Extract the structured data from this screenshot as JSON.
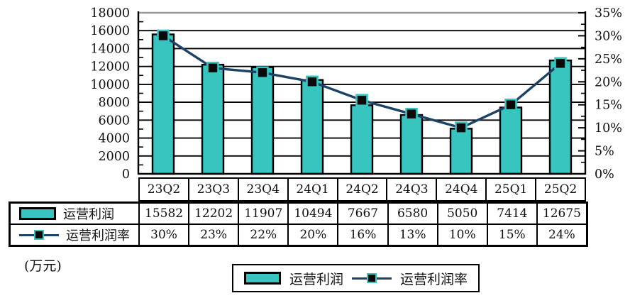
{
  "unit_label": "(万元)",
  "chart_data": {
    "type": "combo-bar-line",
    "title": "",
    "categories": [
      "23Q2",
      "23Q3",
      "23Q4",
      "24Q1",
      "24Q2",
      "24Q3",
      "24Q4",
      "25Q1",
      "25Q2"
    ],
    "series": [
      {
        "name": "运营利润",
        "type": "bar",
        "axis": "left",
        "unit": "万元",
        "color": "#38c5c0",
        "values": [
          15582,
          12202,
          11907,
          10494,
          7667,
          6580,
          5050,
          7414,
          12675
        ]
      },
      {
        "name": "运营利润率",
        "type": "line",
        "axis": "right",
        "value_suffix": "%",
        "color": "#1c4265",
        "marker_color": "#0a0a0a",
        "values": [
          30,
          23,
          22,
          20,
          16,
          13,
          10,
          15,
          24
        ]
      }
    ],
    "left_axis": {
      "min": 0,
      "max": 18000,
      "step": 2000,
      "tick_labels": [
        "18000",
        "16000",
        "14000",
        "12000",
        "10000",
        "8000",
        "6000",
        "4000",
        "2000",
        "0"
      ]
    },
    "right_axis": {
      "min": 0,
      "max": 35,
      "step": 5,
      "tick_labels": [
        "35%",
        "30%",
        "25%",
        "20%",
        "15%",
        "10%",
        "5%",
        "0%"
      ]
    },
    "grid": true,
    "legend_position": "bottom",
    "data_table_shown": true
  }
}
